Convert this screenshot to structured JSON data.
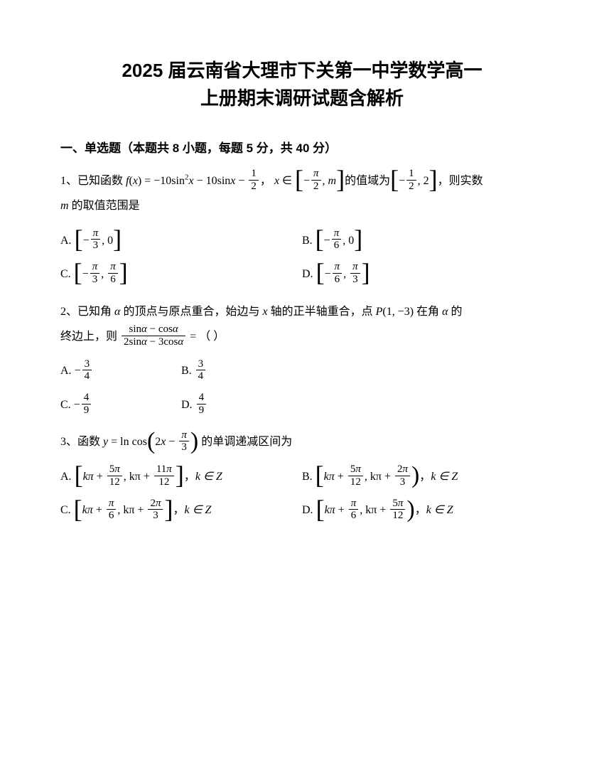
{
  "title_line1": "2025 届云南省大理市下关第一中学数学高一",
  "title_line2": "上册期末调研试题含解析",
  "section1_header": "一、单选题（本题共 8 小题，每题 5 分，共 40 分）",
  "q1": {
    "num": "1、",
    "pre": "已知函数 ",
    "f": "f",
    "x": "x",
    "eq_mid": " = −10sin",
    "sq": "2",
    "eq_mid2": " − 10sin",
    "minus": " − ",
    "half_n": "1",
    "half_d": "2",
    "comma": "，",
    "in": " ∈ ",
    "neg": "−",
    "pi": "π",
    "two": "2",
    "m": "m",
    "range_txt": "的值域为",
    "then_txt": "，则实数",
    "tail": "的取值范围是",
    "A": "A.",
    "B": "B.",
    "C": "C.",
    "D": "D.",
    "three": "3",
    "six": "6",
    "zero": "0"
  },
  "q2": {
    "num": "2、",
    "stem1": "已知角 ",
    "alpha": "α",
    "stem2": " 的顶点与原点重合，始边与 ",
    "x": "x",
    "stem3": " 轴的正半轴重合，点 ",
    "P": "P",
    "pt": "(1, −3)",
    "stem4": " 在角 ",
    "stem5": " 的",
    "stem6": "终边上，则 ",
    "eq": " = （ ）",
    "sin": "sin",
    "cos": "cos",
    "A": "A.",
    "B": "B.",
    "C": "C.",
    "D": "D.",
    "n3": "3",
    "n4": "4",
    "n9": "9",
    "neg": "−",
    "two": "2"
  },
  "q3": {
    "num": "3、",
    "stem1": "函数 ",
    "y": "y",
    "eq": " = ln cos",
    "two": "2",
    "x": "x",
    "minus": " − ",
    "pi": "π",
    "three": "3",
    "stem2": " 的单调递减区间为",
    "A": "A.",
    "B": "B.",
    "C": "C.",
    "D": "D.",
    "k": "k",
    "plus": " + ",
    "n5": "5",
    "n11": "11",
    "n12": "12",
    "n6": "6",
    "comma": "，",
    "kinz": "k ∈ Z",
    "kpi": "kπ"
  }
}
